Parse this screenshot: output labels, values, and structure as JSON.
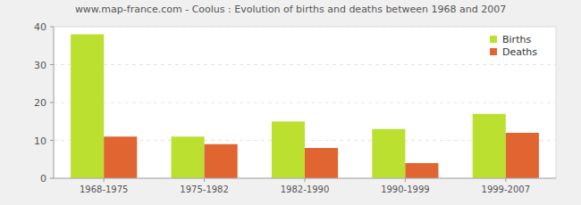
{
  "chart_data": {
    "type": "bar",
    "title": "www.map-france.com - Coolus : Evolution of births and deaths between 1968 and 2007",
    "categories": [
      "1968-1975",
      "1975-1982",
      "1982-1990",
      "1990-1999",
      "1999-2007"
    ],
    "series": [
      {
        "name": "Births",
        "color": "#bbe030",
        "values": [
          38,
          11,
          15,
          13,
          17
        ]
      },
      {
        "name": "Deaths",
        "color": "#e06530",
        "values": [
          11,
          9,
          8,
          4,
          12
        ]
      }
    ],
    "ylim": [
      0,
      40
    ],
    "yticks": [
      0,
      10,
      20,
      30,
      40
    ],
    "grid": true,
    "legend": "top-right"
  }
}
